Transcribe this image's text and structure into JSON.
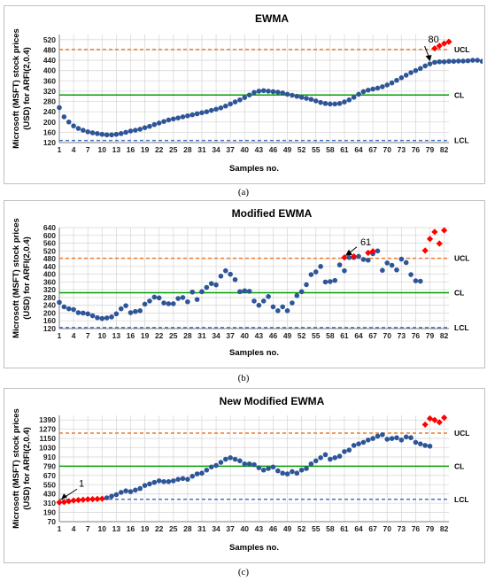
{
  "colors": {
    "data": "#2e5597",
    "ooc": "#ff0000",
    "ucl": "#ed7d31",
    "cl": "#00a000",
    "lcl": "#4472c4",
    "grid": "#d9d9d9"
  },
  "icons": {
    "arrow": "arrow-icon"
  },
  "chart_data": [
    {
      "type": "scatter",
      "title": "EWMA",
      "ylabel": "Microsoft (MSFT) stock prices (USD)  for ARFI(2,0.4)",
      "xlabel": "Samples no.",
      "caption": "(a)",
      "ylim": [
        120,
        540
      ],
      "yticks": [
        120,
        160,
        200,
        240,
        280,
        320,
        360,
        400,
        440,
        480,
        520
      ],
      "xticks": [
        1,
        4,
        7,
        10,
        13,
        16,
        19,
        22,
        25,
        28,
        31,
        34,
        37,
        40,
        43,
        46,
        49,
        52,
        55,
        58,
        61,
        64,
        67,
        70,
        73,
        76,
        79,
        82
      ],
      "xlim": [
        1,
        83
      ],
      "lines": {
        "ucl": 482,
        "cl": 305,
        "lcl": 128
      },
      "line_labels": {
        "ucl": "UCL",
        "cl": "CL",
        "lcl": "LCL"
      },
      "annotation": {
        "text": "80",
        "x": 79
      },
      "series": [
        {
          "values": [
            256,
            220,
            200,
            185,
            175,
            168,
            162,
            158,
            155,
            152,
            150,
            150,
            152,
            155,
            160,
            165,
            168,
            172,
            178,
            183,
            190,
            196,
            202,
            208,
            212,
            216,
            220,
            224,
            228,
            232,
            236,
            240,
            245,
            250,
            255,
            262,
            270,
            278,
            286,
            295,
            305,
            315,
            320,
            322,
            320,
            318,
            316,
            313,
            308,
            304,
            300,
            296,
            292,
            288,
            282,
            276,
            272,
            270,
            270,
            272,
            278,
            286,
            296,
            308,
            318,
            324,
            328,
            332,
            337,
            344,
            352,
            362,
            372,
            382,
            392,
            400,
            408,
            418,
            426,
            432,
            434,
            434,
            436,
            436,
            437,
            437,
            438,
            440,
            440,
            436,
            430,
            424,
            422,
            438,
            452,
            474
          ]
        },
        {
          "name": "",
          "values": [],
          "ooc_x": [
            80,
            81,
            82,
            83
          ],
          "ooc_y": [
            486,
            496,
            505,
            512
          ]
        }
      ]
    },
    {
      "type": "scatter",
      "title": "Modified EWMA",
      "ylabel": "Microsoft (MSFT) stock prices (USD)  for ARFI(2,0.4)",
      "xlabel": "Samples no.",
      "caption": "(b)",
      "ylim": [
        120,
        640
      ],
      "yticks": [
        120,
        160,
        200,
        240,
        280,
        320,
        360,
        400,
        440,
        480,
        520,
        560,
        600,
        640
      ],
      "xticks": [
        1,
        4,
        7,
        10,
        13,
        16,
        19,
        22,
        25,
        28,
        31,
        34,
        37,
        40,
        43,
        46,
        49,
        52,
        55,
        58,
        61,
        64,
        67,
        70,
        73,
        76,
        79,
        82
      ],
      "xlim": [
        1,
        83
      ],
      "lines": {
        "ucl": 482,
        "cl": 305,
        "lcl": 125
      },
      "line_labels": {
        "ucl": "UCL",
        "cl": "CL",
        "lcl": "LCL"
      },
      "annotation": {
        "text": "61",
        "x": 61
      },
      "series": [
        {
          "values": [
            255,
            232,
            222,
            218,
            202,
            200,
            196,
            186,
            176,
            172,
            175,
            180,
            196,
            222,
            238,
            202,
            208,
            212,
            246,
            262,
            282,
            278,
            252,
            248,
            248,
            275,
            280,
            258,
            308,
            270,
            310,
            332,
            352,
            345,
            390,
            418,
            400,
            372,
            310,
            315,
            312,
            262,
            240,
            262,
            285,
            232,
            212,
            232,
            212,
            252,
            290,
            310,
            346,
            398,
            412,
            440,
            360,
            362,
            368,
            448,
            418,
            486,
            486,
            492,
            476,
            472,
            506,
            520,
            420,
            458,
            446,
            422,
            478,
            460,
            398,
            366,
            364
          ]
        },
        {
          "name": "",
          "values": [],
          "ooc_x": [
            61,
            63,
            66,
            67,
            78,
            79,
            80,
            81,
            82
          ],
          "ooc_y": [
            486,
            492,
            510,
            518,
            522,
            582,
            618,
            558,
            626
          ]
        }
      ]
    },
    {
      "type": "scatter",
      "title": "New Modified EWMA",
      "ylabel": "Microsoft (MSFT) stock prices (USD)  for ARFI(2,0.4)",
      "xlabel": "Samples no.",
      "caption": "(c)",
      "ylim": [
        70,
        1450
      ],
      "yticks": [
        70,
        190,
        310,
        430,
        550,
        670,
        790,
        910,
        1030,
        1150,
        1270,
        1390
      ],
      "xticks": [
        1,
        4,
        7,
        10,
        13,
        16,
        19,
        22,
        25,
        28,
        31,
        34,
        37,
        40,
        43,
        46,
        49,
        52,
        55,
        58,
        61,
        64,
        67,
        70,
        73,
        76,
        79,
        82
      ],
      "xlim": [
        1,
        83
      ],
      "lines": {
        "ucl": 1220,
        "cl": 790,
        "lcl": 360
      },
      "line_labels": {
        "ucl": "UCL",
        "cl": "CL",
        "lcl": "LCL"
      },
      "annotation": {
        "text": "1",
        "x": 1
      },
      "series": [
        {
          "values": [
            null,
            null,
            null,
            null,
            null,
            null,
            null,
            null,
            null,
            null,
            380,
            400,
            420,
            450,
            470,
            460,
            480,
            500,
            540,
            560,
            580,
            600,
            590,
            590,
            600,
            620,
            630,
            620,
            660,
            690,
            700,
            740,
            780,
            800,
            840,
            880,
            900,
            880,
            860,
            820,
            820,
            810,
            770,
            740,
            760,
            780,
            730,
            700,
            690,
            720,
            700,
            740,
            760,
            820,
            860,
            900,
            940,
            880,
            900,
            920,
            980,
            1000,
            1060,
            1080,
            1100,
            1130,
            1150,
            1180,
            1200,
            1140,
            1150,
            1160,
            1130,
            1170,
            1160,
            1100,
            1080,
            1060,
            1050
          ]
        },
        {
          "name": "",
          "values": [],
          "ooc_x": [
            1,
            2,
            3,
            4,
            5,
            6,
            7,
            8,
            9,
            10,
            78,
            79,
            80,
            81,
            82
          ],
          "ooc_y": [
            320,
            325,
            335,
            345,
            350,
            355,
            360,
            362,
            365,
            368,
            1330,
            1410,
            1390,
            1360,
            1420
          ]
        }
      ]
    }
  ]
}
